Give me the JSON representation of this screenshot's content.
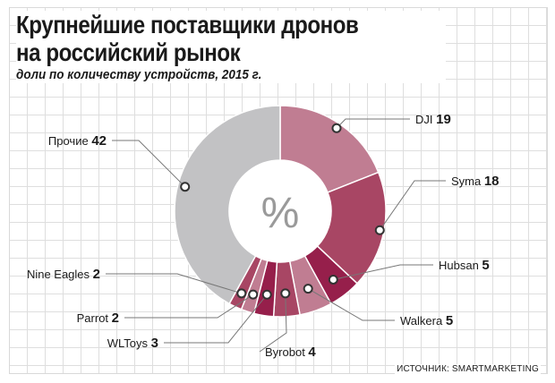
{
  "title_line1": "Крупнейшие поставщики дронов",
  "title_line2": "на российский рынок",
  "subtitle": "доли по количеству устройств, 2015 г.",
  "center_symbol": "%",
  "source": "ИСТОЧНИК: SMARTMARKETING",
  "colors": {
    "DJI": "#c07d92",
    "Syma": "#a84664",
    "Hubsan": "#961f4b",
    "Walkera": "#c07d92",
    "Byrobot": "#a84664",
    "WLToys": "#961f4b",
    "Parrot": "#c07d92",
    "Nine Eagles": "#a84664",
    "Прочие": "#c2c2c4"
  },
  "chart_data": {
    "type": "pie",
    "title": "Крупнейшие поставщики дронов на российский рынок",
    "subtitle": "доли по количеству устройств, 2015 г.",
    "unit": "%",
    "slices": [
      {
        "label": "DJI",
        "value": 19
      },
      {
        "label": "Syma",
        "value": 18
      },
      {
        "label": "Hubsan",
        "value": 5
      },
      {
        "label": "Walkera",
        "value": 5
      },
      {
        "label": "Byrobot",
        "value": 4
      },
      {
        "label": "WLToys",
        "value": 3
      },
      {
        "label": "Parrot",
        "value": 2
      },
      {
        "label": "Nine Eagles",
        "value": 2
      },
      {
        "label": "Прочие",
        "value": 42
      }
    ]
  }
}
